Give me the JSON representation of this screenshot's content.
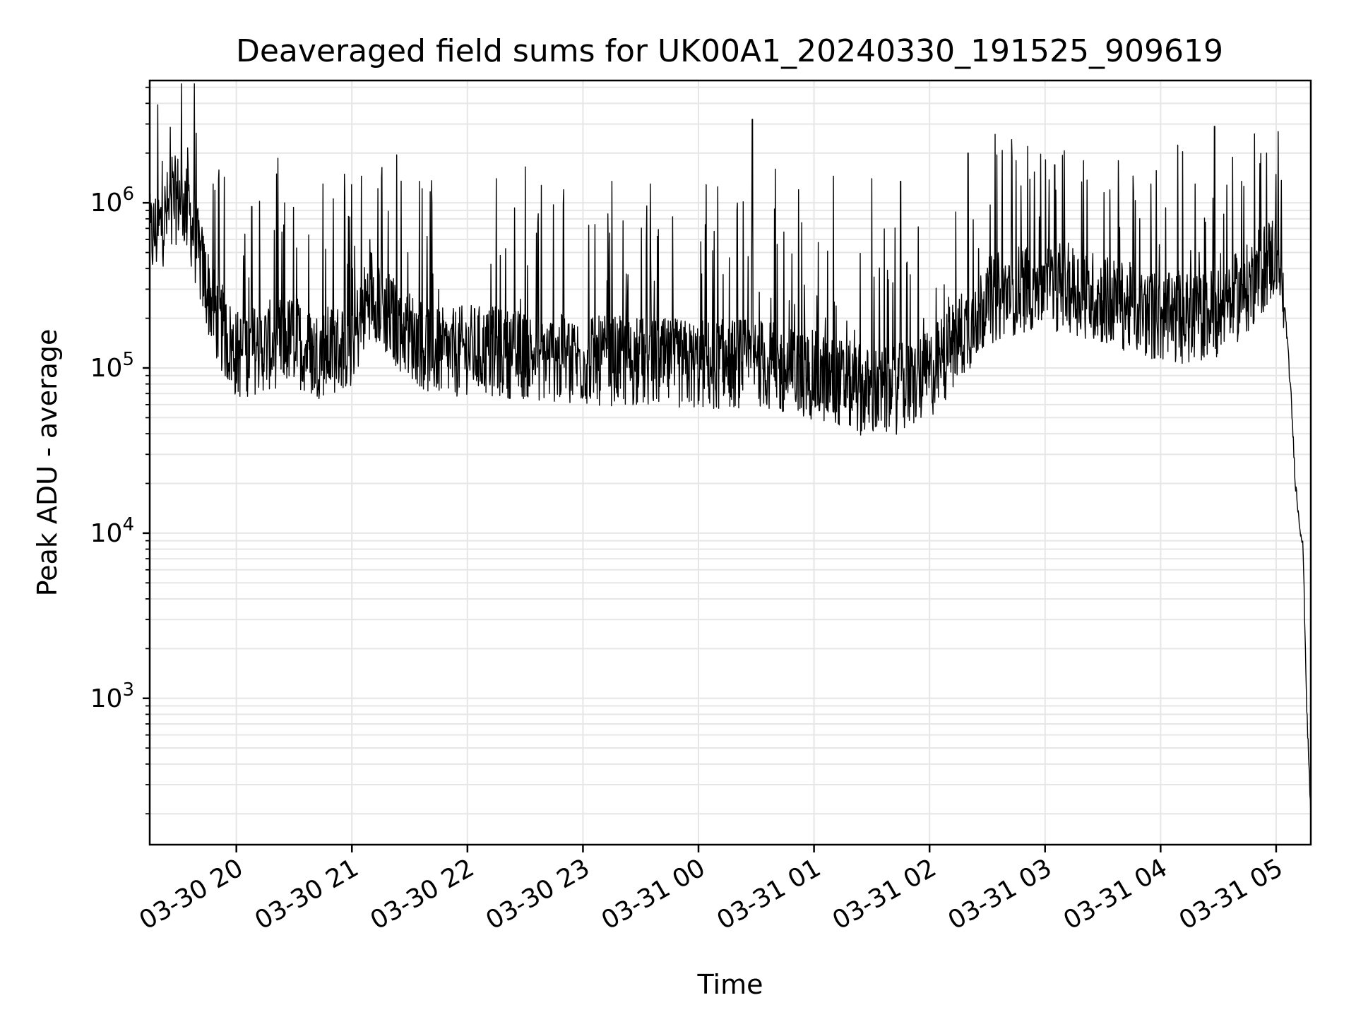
{
  "chart_data": {
    "type": "line",
    "title": "Deaveraged field sums for UK00A1_20240330_191525_909619",
    "xlabel": "Time",
    "ylabel": "Peak ADU - average",
    "yscale": "log",
    "ylim": [
      130,
      5500000
    ],
    "xlim": [
      "2024-03-30 19:15",
      "2024-03-31 05:18"
    ],
    "grid": true,
    "x_ticks": [
      {
        "t": "2024-03-30 20:00",
        "label": "03-30 20"
      },
      {
        "t": "2024-03-30 21:00",
        "label": "03-30 21"
      },
      {
        "t": "2024-03-30 22:00",
        "label": "03-30 22"
      },
      {
        "t": "2024-03-30 23:00",
        "label": "03-30 23"
      },
      {
        "t": "2024-03-31 00:00",
        "label": "03-31 00"
      },
      {
        "t": "2024-03-31 01:00",
        "label": "03-31 01"
      },
      {
        "t": "2024-03-31 02:00",
        "label": "03-31 02"
      },
      {
        "t": "2024-03-31 03:00",
        "label": "03-31 03"
      },
      {
        "t": "2024-03-31 04:00",
        "label": "03-31 04"
      },
      {
        "t": "2024-03-31 05:00",
        "label": "03-31 05"
      }
    ],
    "y_ticks": [
      {
        "value": 1000,
        "base": "10",
        "exp": "3"
      },
      {
        "value": 10000,
        "base": "10",
        "exp": "4"
      },
      {
        "value": 100000,
        "base": "10",
        "exp": "5"
      },
      {
        "value": 1000000,
        "base": "10",
        "exp": "6"
      }
    ],
    "series": [
      {
        "color": "#000000",
        "x": [
          "2024-03-30 19:15",
          "2024-03-30 19:20",
          "2024-03-30 19:25",
          "2024-03-30 19:30",
          "2024-03-30 19:35",
          "2024-03-30 19:40",
          "2024-03-30 19:45",
          "2024-03-30 19:50",
          "2024-03-30 19:55",
          "2024-03-30 20:00",
          "2024-03-30 20:10",
          "2024-03-30 20:20",
          "2024-03-30 20:30",
          "2024-03-30 20:40",
          "2024-03-30 20:50",
          "2024-03-30 21:00",
          "2024-03-30 21:10",
          "2024-03-30 21:20",
          "2024-03-30 21:30",
          "2024-03-30 21:40",
          "2024-03-30 21:50",
          "2024-03-30 22:00",
          "2024-03-30 22:15",
          "2024-03-30 22:30",
          "2024-03-30 22:45",
          "2024-03-30 23:00",
          "2024-03-30 23:15",
          "2024-03-30 23:30",
          "2024-03-30 23:45",
          "2024-03-31 00:00",
          "2024-03-31 00:15",
          "2024-03-31 00:30",
          "2024-03-31 00:45",
          "2024-03-31 01:00",
          "2024-03-31 01:15",
          "2024-03-31 01:30",
          "2024-03-31 01:45",
          "2024-03-31 02:00",
          "2024-03-31 02:15",
          "2024-03-31 02:30",
          "2024-03-31 02:45",
          "2024-03-31 03:00",
          "2024-03-31 03:15",
          "2024-03-31 03:30",
          "2024-03-31 03:45",
          "2024-03-31 04:00",
          "2024-03-31 04:15",
          "2024-03-31 04:30",
          "2024-03-31 04:45",
          "2024-03-31 05:00",
          "2024-03-31 05:05",
          "2024-03-31 05:08",
          "2024-03-31 05:10",
          "2024-03-31 05:12",
          "2024-03-31 05:14",
          "2024-03-31 05:16",
          "2024-03-31 05:18"
        ],
        "y": [
          600000,
          700000,
          900000,
          1100000,
          900000,
          500000,
          300000,
          200000,
          150000,
          120000,
          130000,
          140000,
          150000,
          120000,
          130000,
          140000,
          300000,
          200000,
          160000,
          130000,
          120000,
          130000,
          125000,
          120000,
          115000,
          110000,
          110000,
          108000,
          106000,
          105000,
          105000,
          110000,
          95000,
          90000,
          80000,
          70000,
          75000,
          90000,
          150000,
          250000,
          300000,
          320000,
          300000,
          260000,
          230000,
          200000,
          200000,
          220000,
          300000,
          500000,
          200000,
          60000,
          20000,
          12000,
          8000,
          800,
          200
        ],
        "spikes": [
          {
            "t": "2024-03-30 19:38",
            "y": 1500000
          },
          {
            "t": "2024-03-30 19:48",
            "y": 1300000
          },
          {
            "t": "2024-03-30 20:08",
            "y": 950000
          },
          {
            "t": "2024-03-30 20:25",
            "y": 1000000
          },
          {
            "t": "2024-03-30 20:45",
            "y": 1300000
          },
          {
            "t": "2024-03-30 21:05",
            "y": 1450000
          },
          {
            "t": "2024-03-30 21:35",
            "y": 1350000
          },
          {
            "t": "2024-03-30 22:15",
            "y": 1400000
          },
          {
            "t": "2024-03-30 22:30",
            "y": 1650000
          },
          {
            "t": "2024-03-30 22:50",
            "y": 1200000
          },
          {
            "t": "2024-03-30 23:15",
            "y": 1350000
          },
          {
            "t": "2024-03-30 23:35",
            "y": 1300000
          },
          {
            "t": "2024-03-31 00:10",
            "y": 1250000
          },
          {
            "t": "2024-03-31 00:28",
            "y": 3200000
          },
          {
            "t": "2024-03-31 00:40",
            "y": 1600000
          },
          {
            "t": "2024-03-31 00:52",
            "y": 1200000
          },
          {
            "t": "2024-03-31 01:10",
            "y": 1450000
          },
          {
            "t": "2024-03-31 01:30",
            "y": 1400000
          },
          {
            "t": "2024-03-31 01:45",
            "y": 1350000
          },
          {
            "t": "2024-03-31 02:20",
            "y": 2000000
          },
          {
            "t": "2024-03-31 02:35",
            "y": 1950000
          },
          {
            "t": "2024-03-31 02:45",
            "y": 1800000
          },
          {
            "t": "2024-03-31 03:05",
            "y": 1700000
          },
          {
            "t": "2024-03-31 03:20",
            "y": 1800000
          },
          {
            "t": "2024-03-31 03:38",
            "y": 1800000
          },
          {
            "t": "2024-03-31 03:55",
            "y": 1300000
          },
          {
            "t": "2024-03-31 04:18",
            "y": 1300000
          },
          {
            "t": "2024-03-31 04:28",
            "y": 2900000
          },
          {
            "t": "2024-03-31 04:42",
            "y": 1350000
          },
          {
            "t": "2024-03-31 04:55",
            "y": 2000000
          },
          {
            "t": "2024-03-31 05:01",
            "y": 2700000
          }
        ]
      }
    ]
  }
}
